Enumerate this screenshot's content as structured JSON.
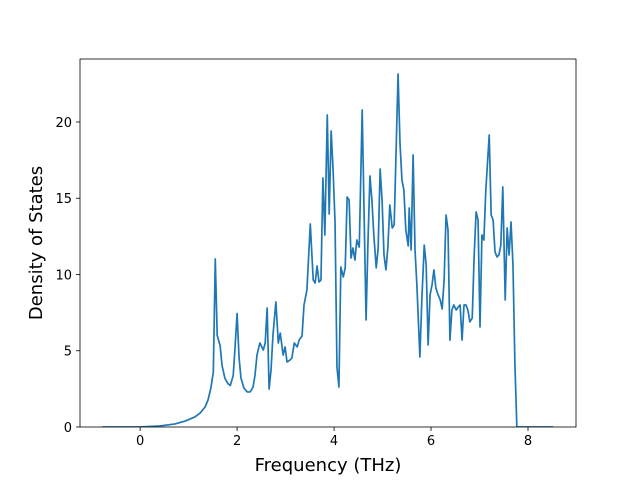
{
  "chart_data": {
    "type": "line",
    "xlabel": "Frequency (THz)",
    "ylabel": "Density of States",
    "color": "#1f77b4",
    "xlim": [
      -1.24,
      8.99
    ],
    "ylim": [
      0,
      24.13
    ],
    "xticks": [
      0,
      2,
      4,
      6,
      8
    ],
    "yticks": [
      0,
      5,
      10,
      15,
      20
    ],
    "x": [
      -0.78,
      0,
      0.41,
      0.72,
      0.93,
      1.13,
      1.24,
      1.34,
      1.4,
      1.46,
      1.51,
      1.55,
      1.59,
      1.65,
      1.69,
      1.75,
      1.81,
      1.86,
      1.92,
      1.96,
      2.0,
      2.04,
      2.08,
      2.14,
      2.21,
      2.27,
      2.33,
      2.37,
      2.41,
      2.47,
      2.54,
      2.58,
      2.62,
      2.66,
      2.7,
      2.74,
      2.8,
      2.85,
      2.89,
      2.95,
      2.99,
      3.03,
      3.09,
      3.13,
      3.18,
      3.24,
      3.28,
      3.34,
      3.38,
      3.44,
      3.51,
      3.57,
      3.61,
      3.65,
      3.69,
      3.73,
      3.77,
      3.81,
      3.86,
      3.9,
      3.94,
      3.98,
      4.02,
      4.06,
      4.1,
      4.14,
      4.19,
      4.23,
      4.27,
      4.31,
      4.35,
      4.39,
      4.43,
      4.47,
      4.52,
      4.58,
      4.62,
      4.66,
      4.7,
      4.74,
      4.78,
      4.82,
      4.87,
      4.91,
      4.95,
      4.99,
      5.03,
      5.07,
      5.11,
      5.15,
      5.2,
      5.24,
      5.28,
      5.32,
      5.36,
      5.4,
      5.44,
      5.48,
      5.53,
      5.55,
      5.59,
      5.63,
      5.67,
      5.71,
      5.77,
      5.81,
      5.86,
      5.9,
      5.94,
      5.98,
      6.02,
      6.06,
      6.1,
      6.14,
      6.19,
      6.23,
      6.27,
      6.31,
      6.35,
      6.39,
      6.43,
      6.47,
      6.52,
      6.56,
      6.6,
      6.64,
      6.68,
      6.72,
      6.76,
      6.8,
      6.85,
      6.89,
      6.93,
      6.97,
      7.01,
      7.05,
      7.09,
      7.13,
      7.2,
      7.24,
      7.28,
      7.32,
      7.36,
      7.4,
      7.44,
      7.48,
      7.53,
      7.57,
      7.61,
      7.65,
      7.69,
      7.73,
      7.77,
      7.84,
      8.52
    ],
    "values": [
      0,
      0,
      0.07,
      0.2,
      0.39,
      0.66,
      0.92,
      1.31,
      1.77,
      2.56,
      3.61,
      11.02,
      6.0,
      5.34,
      4.03,
      3.18,
      2.85,
      2.72,
      3.38,
      5.34,
      7.44,
      4.59,
      3.21,
      2.56,
      2.3,
      2.3,
      2.62,
      3.41,
      4.72,
      5.51,
      5.05,
      5.51,
      7.8,
      2.49,
      3.74,
      6.03,
      8.2,
      5.51,
      6.16,
      4.72,
      5.25,
      4.26,
      4.39,
      4.52,
      5.51,
      5.25,
      5.7,
      5.97,
      8.0,
      8.98,
      13.31,
      9.64,
      9.44,
      10.56,
      9.51,
      9.64,
      16.33,
      12.59,
      20.46,
      13.97,
      19.41,
      16.85,
      13.44,
      3.93,
      2.62,
      10.49,
      9.84,
      10.43,
      15.08,
      14.89,
      11.08,
      11.74,
      10.95,
      12.26,
      11.8,
      20.79,
      13.9,
      7.02,
      12.2,
      16.46,
      14.89,
      12.59,
      10.43,
      11.74,
      16.92,
      14.89,
      11.28,
      10.3,
      11.8,
      14.56,
      13.05,
      13.25,
      18.16,
      23.15,
      18.62,
      16.2,
      15.54,
      12.92,
      11.87,
      14.36,
      11.61,
      17.84,
      11.61,
      9.18,
      4.59,
      8.33,
      11.93,
      10.62,
      5.38,
      8.66,
      9.31,
      10.3,
      9.11,
      8.72,
      8.33,
      7.74,
      9.64,
      13.9,
      12.92,
      5.7,
      7.67,
      8.0,
      7.67,
      7.87,
      8.0,
      5.7,
      8.0,
      8.0,
      7.67,
      6.89,
      7.15,
      11.28,
      14.1,
      13.57,
      6.56,
      12.59,
      12.26,
      15.54,
      19.15,
      13.9,
      13.57,
      11.48,
      11.15,
      11.28,
      11.93,
      15.74,
      8.33,
      13.05,
      11.28,
      13.44,
      10.62,
      4.13,
      0,
      0,
      0
    ]
  }
}
